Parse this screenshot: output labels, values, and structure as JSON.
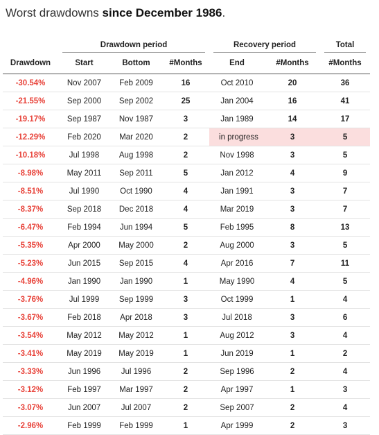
{
  "title": {
    "prefix": "Worst drawdowns ",
    "emphasis": "since December 1986",
    "suffix": "."
  },
  "groups": {
    "drawdown_period": "Drawdown period",
    "recovery_period": "Recovery period",
    "total": "Total"
  },
  "columns": {
    "drawdown": "Drawdown",
    "start": "Start",
    "bottom": "Bottom",
    "dd_months": "#Months",
    "end": "End",
    "rec_months": "#Months",
    "total_months": "#Months"
  },
  "highlight_color": "#fbdede",
  "drawdown_color": "#e8433a",
  "rows": [
    {
      "drawdown": "-30.54%",
      "start": "Nov 2007",
      "bottom": "Feb 2009",
      "dd_months": "16",
      "end": "Oct 2010",
      "rec_months": "20",
      "total": "36"
    },
    {
      "drawdown": "-21.55%",
      "start": "Sep 2000",
      "bottom": "Sep 2002",
      "dd_months": "25",
      "end": "Jan 2004",
      "rec_months": "16",
      "total": "41"
    },
    {
      "drawdown": "-19.17%",
      "start": "Sep 1987",
      "bottom": "Nov 1987",
      "dd_months": "3",
      "end": "Jan 1989",
      "rec_months": "14",
      "total": "17"
    },
    {
      "drawdown": "-12.29%",
      "start": "Feb 2020",
      "bottom": "Mar 2020",
      "dd_months": "2",
      "end": "in progress",
      "rec_months": "3",
      "total": "5",
      "highlight": true
    },
    {
      "drawdown": "-10.18%",
      "start": "Jul 1998",
      "bottom": "Aug 1998",
      "dd_months": "2",
      "end": "Nov 1998",
      "rec_months": "3",
      "total": "5"
    },
    {
      "drawdown": "-8.98%",
      "start": "May 2011",
      "bottom": "Sep 2011",
      "dd_months": "5",
      "end": "Jan 2012",
      "rec_months": "4",
      "total": "9"
    },
    {
      "drawdown": "-8.51%",
      "start": "Jul 1990",
      "bottom": "Oct 1990",
      "dd_months": "4",
      "end": "Jan 1991",
      "rec_months": "3",
      "total": "7"
    },
    {
      "drawdown": "-8.37%",
      "start": "Sep 2018",
      "bottom": "Dec 2018",
      "dd_months": "4",
      "end": "Mar 2019",
      "rec_months": "3",
      "total": "7"
    },
    {
      "drawdown": "-6.47%",
      "start": "Feb 1994",
      "bottom": "Jun 1994",
      "dd_months": "5",
      "end": "Feb 1995",
      "rec_months": "8",
      "total": "13"
    },
    {
      "drawdown": "-5.35%",
      "start": "Apr 2000",
      "bottom": "May 2000",
      "dd_months": "2",
      "end": "Aug 2000",
      "rec_months": "3",
      "total": "5"
    },
    {
      "drawdown": "-5.23%",
      "start": "Jun 2015",
      "bottom": "Sep 2015",
      "dd_months": "4",
      "end": "Apr 2016",
      "rec_months": "7",
      "total": "11"
    },
    {
      "drawdown": "-4.96%",
      "start": "Jan 1990",
      "bottom": "Jan 1990",
      "dd_months": "1",
      "end": "May 1990",
      "rec_months": "4",
      "total": "5"
    },
    {
      "drawdown": "-3.76%",
      "start": "Jul 1999",
      "bottom": "Sep 1999",
      "dd_months": "3",
      "end": "Oct 1999",
      "rec_months": "1",
      "total": "4"
    },
    {
      "drawdown": "-3.67%",
      "start": "Feb 2018",
      "bottom": "Apr 2018",
      "dd_months": "3",
      "end": "Jul 2018",
      "rec_months": "3",
      "total": "6"
    },
    {
      "drawdown": "-3.54%",
      "start": "May 2012",
      "bottom": "May 2012",
      "dd_months": "1",
      "end": "Aug 2012",
      "rec_months": "3",
      "total": "4"
    },
    {
      "drawdown": "-3.41%",
      "start": "May 2019",
      "bottom": "May 2019",
      "dd_months": "1",
      "end": "Jun 2019",
      "rec_months": "1",
      "total": "2"
    },
    {
      "drawdown": "-3.33%",
      "start": "Jun 1996",
      "bottom": "Jul 1996",
      "dd_months": "2",
      "end": "Sep 1996",
      "rec_months": "2",
      "total": "4"
    },
    {
      "drawdown": "-3.12%",
      "start": "Feb 1997",
      "bottom": "Mar 1997",
      "dd_months": "2",
      "end": "Apr 1997",
      "rec_months": "1",
      "total": "3"
    },
    {
      "drawdown": "-3.07%",
      "start": "Jun 2007",
      "bottom": "Jul 2007",
      "dd_months": "2",
      "end": "Sep 2007",
      "rec_months": "2",
      "total": "4"
    },
    {
      "drawdown": "-2.96%",
      "start": "Feb 1999",
      "bottom": "Feb 1999",
      "dd_months": "1",
      "end": "Apr 1999",
      "rec_months": "2",
      "total": "3"
    }
  ]
}
